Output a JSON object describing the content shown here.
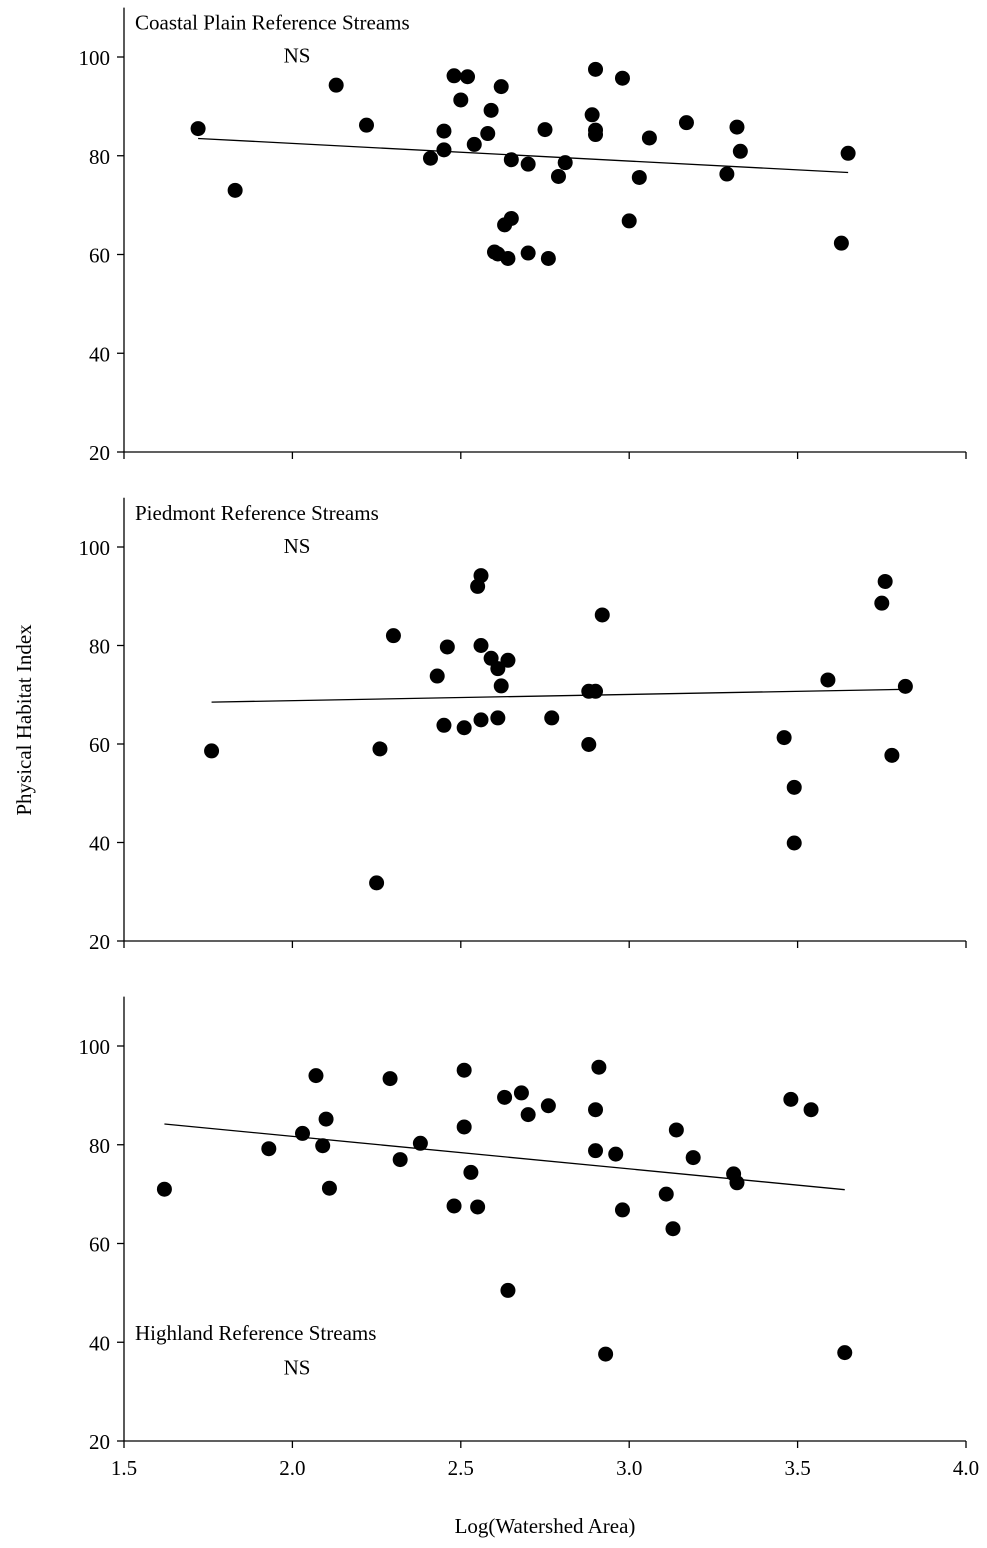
{
  "figure": {
    "ylabel": "Physical Habitat Index",
    "xlabel": "Log(Watershed Area)",
    "x_ticks": [
      "1.5",
      "2.0",
      "2.5",
      "3.0",
      "3.5",
      "4.0"
    ],
    "y_ticks": [
      "20",
      "40",
      "60",
      "80",
      "100"
    ]
  },
  "chart_data": [
    {
      "type": "scatter",
      "title": "Coastal Plain Reference Streams",
      "annotation": "NS",
      "xlim": [
        1.5,
        4.0
      ],
      "ylim": [
        20,
        110
      ],
      "x_tick_values": [
        1.5,
        2.0,
        2.5,
        3.0,
        3.5,
        4.0
      ],
      "y_tick_values": [
        20,
        40,
        60,
        80,
        100
      ],
      "show_x_tick_labels": false,
      "points": [
        [
          1.72,
          85.5
        ],
        [
          1.83,
          73.0
        ],
        [
          2.13,
          94.3
        ],
        [
          2.22,
          86.2
        ],
        [
          2.41,
          79.5
        ],
        [
          2.45,
          85.0
        ],
        [
          2.45,
          81.2
        ],
        [
          2.48,
          96.2
        ],
        [
          2.5,
          91.3
        ],
        [
          2.52,
          96.0
        ],
        [
          2.54,
          82.3
        ],
        [
          2.58,
          84.5
        ],
        [
          2.59,
          89.2
        ],
        [
          2.6,
          60.5
        ],
        [
          2.61,
          60.1
        ],
        [
          2.62,
          94.0
        ],
        [
          2.63,
          66.0
        ],
        [
          2.64,
          59.2
        ],
        [
          2.65,
          79.2
        ],
        [
          2.65,
          67.3
        ],
        [
          2.7,
          60.3
        ],
        [
          2.7,
          78.3
        ],
        [
          2.75,
          85.3
        ],
        [
          2.76,
          59.2
        ],
        [
          2.79,
          75.8
        ],
        [
          2.81,
          78.6
        ],
        [
          2.89,
          88.3
        ],
        [
          2.9,
          97.5
        ],
        [
          2.9,
          85.2
        ],
        [
          2.9,
          84.3
        ],
        [
          2.98,
          95.7
        ],
        [
          3.0,
          66.8
        ],
        [
          3.03,
          75.6
        ],
        [
          3.06,
          83.6
        ],
        [
          3.17,
          86.7
        ],
        [
          3.29,
          76.3
        ],
        [
          3.32,
          85.8
        ],
        [
          3.33,
          80.9
        ],
        [
          3.63,
          62.3
        ],
        [
          3.65,
          80.5
        ]
      ],
      "fit_line": {
        "x": [
          1.72,
          3.65
        ],
        "y": [
          83.5,
          76.6
        ]
      }
    },
    {
      "type": "scatter",
      "title": "Piedmont Reference Streams",
      "annotation": "NS",
      "xlim": [
        1.5,
        4.0
      ],
      "ylim": [
        20,
        110
      ],
      "x_tick_values": [
        1.5,
        2.0,
        2.5,
        3.0,
        3.5,
        4.0
      ],
      "y_tick_values": [
        20,
        40,
        60,
        80,
        100
      ],
      "show_x_tick_labels": false,
      "points": [
        [
          1.76,
          58.6
        ],
        [
          2.25,
          31.8
        ],
        [
          2.26,
          59.0
        ],
        [
          2.3,
          82.0
        ],
        [
          2.43,
          73.8
        ],
        [
          2.45,
          63.8
        ],
        [
          2.46,
          79.7
        ],
        [
          2.51,
          63.3
        ],
        [
          2.55,
          92.0
        ],
        [
          2.56,
          94.2
        ],
        [
          2.56,
          80.0
        ],
        [
          2.56,
          64.9
        ],
        [
          2.59,
          77.4
        ],
        [
          2.61,
          65.3
        ],
        [
          2.61,
          75.3
        ],
        [
          2.62,
          71.8
        ],
        [
          2.64,
          77.0
        ],
        [
          2.77,
          65.3
        ],
        [
          2.88,
          59.9
        ],
        [
          2.88,
          70.7
        ],
        [
          2.9,
          70.7
        ],
        [
          2.92,
          86.2
        ],
        [
          3.46,
          61.3
        ],
        [
          3.49,
          51.2
        ],
        [
          3.49,
          39.9
        ],
        [
          3.59,
          73.0
        ],
        [
          3.75,
          88.6
        ],
        [
          3.76,
          93.0
        ],
        [
          3.78,
          57.7
        ],
        [
          3.82,
          71.7
        ]
      ],
      "fit_line": {
        "x": [
          1.76,
          3.82
        ],
        "y": [
          68.5,
          71.1
        ]
      }
    },
    {
      "type": "scatter",
      "title": "Highland Reference Streams",
      "annotation": "NS",
      "xlim": [
        1.5,
        4.0
      ],
      "ylim": [
        20,
        110
      ],
      "x_tick_values": [
        1.5,
        2.0,
        2.5,
        3.0,
        3.5,
        4.0
      ],
      "y_tick_values": [
        20,
        40,
        60,
        80,
        100
      ],
      "show_x_tick_labels": true,
      "points": [
        [
          1.62,
          71.0
        ],
        [
          1.93,
          79.2
        ],
        [
          2.03,
          82.3
        ],
        [
          2.07,
          94.0
        ],
        [
          2.09,
          79.8
        ],
        [
          2.1,
          85.2
        ],
        [
          2.11,
          71.2
        ],
        [
          2.29,
          93.4
        ],
        [
          2.32,
          77.0
        ],
        [
          2.38,
          80.3
        ],
        [
          2.48,
          67.6
        ],
        [
          2.51,
          95.1
        ],
        [
          2.51,
          83.6
        ],
        [
          2.53,
          74.4
        ],
        [
          2.55,
          67.4
        ],
        [
          2.63,
          89.6
        ],
        [
          2.64,
          50.5
        ],
        [
          2.68,
          90.5
        ],
        [
          2.7,
          86.1
        ],
        [
          2.76,
          87.9
        ],
        [
          2.9,
          87.1
        ],
        [
          2.9,
          78.8
        ],
        [
          2.91,
          95.7
        ],
        [
          2.93,
          37.6
        ],
        [
          2.96,
          78.1
        ],
        [
          2.98,
          66.8
        ],
        [
          3.11,
          70.0
        ],
        [
          3.13,
          63.0
        ],
        [
          3.14,
          83.0
        ],
        [
          3.19,
          77.4
        ],
        [
          3.31,
          74.1
        ],
        [
          3.32,
          72.3
        ],
        [
          3.48,
          89.2
        ],
        [
          3.54,
          87.1
        ],
        [
          3.64,
          37.9
        ]
      ],
      "fit_line": {
        "x": [
          1.62,
          3.64
        ],
        "y": [
          84.2,
          70.9
        ]
      }
    }
  ]
}
